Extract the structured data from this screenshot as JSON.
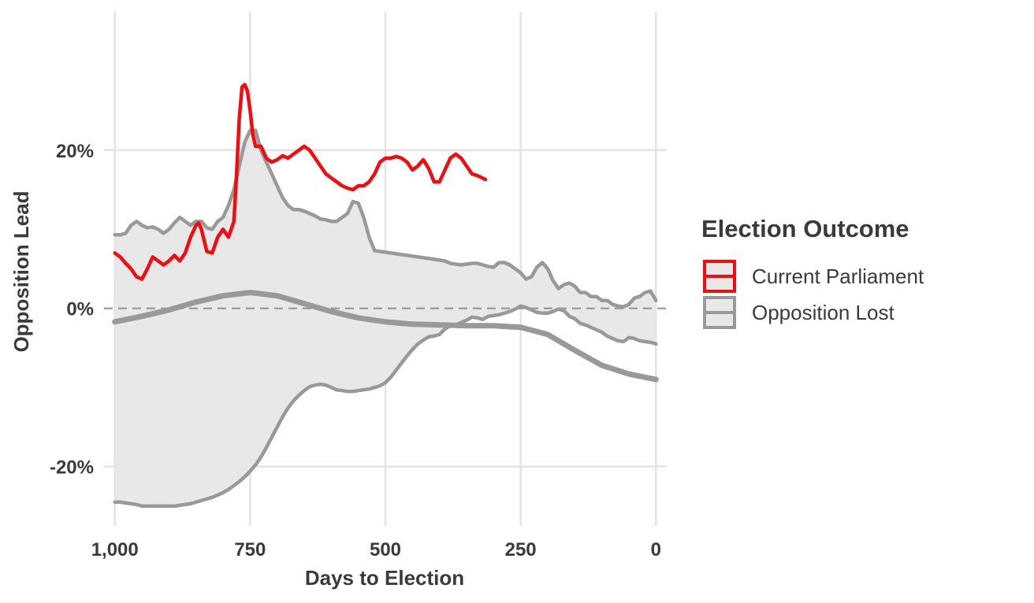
{
  "chart_data": {
    "type": "line",
    "title": "",
    "xlabel": "Days to Election",
    "ylabel": "Opposition Lead",
    "xlim": [
      1020,
      -20
    ],
    "ylim": [
      -0.275,
      0.375
    ],
    "x_reversed": true,
    "x_ticks": [
      1000,
      750,
      500,
      250,
      0
    ],
    "x_tick_labels": [
      "1,000",
      "750",
      "500",
      "250",
      "0"
    ],
    "y_ticks": [
      0.2,
      0.0,
      -0.2
    ],
    "y_tick_labels": [
      "20%",
      "0%",
      "-20%"
    ],
    "grid": true,
    "reference_line": {
      "y": 0,
      "style": "dashed"
    },
    "legend": {
      "title": "Election Outcome",
      "position": "right",
      "entries": [
        "Current Parliament",
        "Opposition Lost"
      ]
    },
    "colors": {
      "current": "#f20c10",
      "lost_line": "#999999",
      "lost_band": "#e8e8e8",
      "grid": "#e3e3e3",
      "zero_line": "#9a9a9a"
    },
    "series": [
      {
        "name": "Current Parliament",
        "kind": "line",
        "x": [
          1000,
          990,
          980,
          970,
          960,
          950,
          940,
          930,
          920,
          910,
          900,
          890,
          880,
          870,
          860,
          850,
          845,
          840,
          830,
          820,
          810,
          800,
          790,
          780,
          775,
          770,
          765,
          760,
          755,
          750,
          745,
          740,
          730,
          720,
          710,
          700,
          690,
          680,
          670,
          660,
          650,
          640,
          630,
          620,
          610,
          600,
          590,
          580,
          570,
          560,
          550,
          540,
          530,
          520,
          510,
          500,
          490,
          480,
          470,
          460,
          450,
          440,
          430,
          420,
          410,
          400,
          390,
          380,
          370,
          360,
          350,
          340,
          330,
          315
        ],
        "y": [
          0.07,
          0.065,
          0.057,
          0.05,
          0.04,
          0.037,
          0.05,
          0.065,
          0.06,
          0.055,
          0.06,
          0.067,
          0.06,
          0.07,
          0.09,
          0.105,
          0.108,
          0.1,
          0.072,
          0.07,
          0.09,
          0.1,
          0.09,
          0.11,
          0.17,
          0.24,
          0.28,
          0.283,
          0.275,
          0.25,
          0.22,
          0.205,
          0.205,
          0.19,
          0.185,
          0.188,
          0.193,
          0.19,
          0.195,
          0.2,
          0.205,
          0.2,
          0.19,
          0.18,
          0.17,
          0.165,
          0.16,
          0.155,
          0.152,
          0.15,
          0.155,
          0.155,
          0.16,
          0.17,
          0.185,
          0.19,
          0.19,
          0.192,
          0.19,
          0.185,
          0.175,
          0.18,
          0.188,
          0.177,
          0.16,
          0.16,
          0.175,
          0.19,
          0.195,
          0.19,
          0.18,
          0.17,
          0.168,
          0.163
        ]
      },
      {
        "name": "Opposition Lost",
        "kind": "band",
        "x": [
          1000,
          990,
          980,
          970,
          960,
          950,
          940,
          930,
          920,
          910,
          900,
          890,
          880,
          870,
          860,
          850,
          840,
          830,
          820,
          810,
          800,
          790,
          780,
          770,
          760,
          750,
          740,
          730,
          720,
          710,
          700,
          690,
          680,
          670,
          660,
          650,
          640,
          630,
          620,
          610,
          600,
          590,
          580,
          570,
          560,
          550,
          540,
          530,
          520,
          510,
          500,
          490,
          480,
          470,
          460,
          450,
          440,
          430,
          420,
          410,
          400,
          390,
          380,
          370,
          360,
          350,
          340,
          330,
          320,
          310,
          300,
          290,
          280,
          270,
          260,
          250,
          240,
          230,
          220,
          210,
          200,
          190,
          180,
          170,
          160,
          150,
          140,
          130,
          120,
          110,
          100,
          90,
          80,
          70,
          60,
          50,
          40,
          30,
          20,
          10,
          0
        ],
        "upper": [
          0.093,
          0.093,
          0.095,
          0.105,
          0.11,
          0.105,
          0.102,
          0.103,
          0.1,
          0.095,
          0.1,
          0.108,
          0.115,
          0.11,
          0.105,
          0.11,
          0.11,
          0.102,
          0.1,
          0.11,
          0.115,
          0.13,
          0.15,
          0.18,
          0.21,
          0.225,
          0.225,
          0.2,
          0.185,
          0.17,
          0.155,
          0.14,
          0.13,
          0.125,
          0.125,
          0.123,
          0.12,
          0.117,
          0.113,
          0.112,
          0.11,
          0.11,
          0.115,
          0.12,
          0.135,
          0.133,
          0.115,
          0.09,
          0.073,
          0.072,
          0.071,
          0.07,
          0.069,
          0.068,
          0.067,
          0.066,
          0.065,
          0.064,
          0.063,
          0.062,
          0.061,
          0.06,
          0.057,
          0.056,
          0.055,
          0.056,
          0.057,
          0.057,
          0.055,
          0.053,
          0.052,
          0.058,
          0.058,
          0.055,
          0.05,
          0.045,
          0.037,
          0.04,
          0.052,
          0.058,
          0.05,
          0.035,
          0.025,
          0.03,
          0.032,
          0.028,
          0.02,
          0.02,
          0.015,
          0.015,
          0.01,
          0.01,
          0.005,
          0.003,
          0.002,
          0.005,
          0.013,
          0.015,
          0.02,
          0.022,
          0.01
        ],
        "lower": [
          -0.245,
          -0.245,
          -0.246,
          -0.247,
          -0.248,
          -0.25,
          -0.25,
          -0.25,
          -0.25,
          -0.25,
          -0.25,
          -0.25,
          -0.249,
          -0.248,
          -0.247,
          -0.245,
          -0.243,
          -0.241,
          -0.239,
          -0.236,
          -0.233,
          -0.229,
          -0.224,
          -0.219,
          -0.213,
          -0.206,
          -0.198,
          -0.188,
          -0.176,
          -0.163,
          -0.15,
          -0.137,
          -0.126,
          -0.117,
          -0.11,
          -0.104,
          -0.099,
          -0.097,
          -0.096,
          -0.097,
          -0.1,
          -0.103,
          -0.104,
          -0.105,
          -0.105,
          -0.104,
          -0.103,
          -0.102,
          -0.1,
          -0.098,
          -0.094,
          -0.087,
          -0.078,
          -0.069,
          -0.06,
          -0.052,
          -0.045,
          -0.04,
          -0.036,
          -0.035,
          -0.033,
          -0.026,
          -0.022,
          -0.021,
          -0.018,
          -0.015,
          -0.011,
          -0.012,
          -0.014,
          -0.01,
          -0.009,
          -0.008,
          -0.006,
          -0.004,
          -0.001,
          0.003,
          0.001,
          -0.002,
          -0.005,
          -0.006,
          -0.006,
          -0.004,
          -0.001,
          -0.003,
          -0.01,
          -0.013,
          -0.019,
          -0.021,
          -0.024,
          -0.027,
          -0.03,
          -0.035,
          -0.038,
          -0.041,
          -0.042,
          -0.037,
          -0.038,
          -0.041,
          -0.042,
          -0.043,
          -0.045
        ]
      },
      {
        "name": "Opposition Lost",
        "kind": "line",
        "x": [
          1000,
          950,
          900,
          850,
          800,
          750,
          700,
          650,
          600,
          550,
          500,
          450,
          400,
          350,
          300,
          250,
          200,
          150,
          100,
          50,
          0
        ],
        "y": [
          -0.017,
          -0.01,
          -0.002,
          0.008,
          0.016,
          0.02,
          0.016,
          0.006,
          -0.004,
          -0.012,
          -0.017,
          -0.02,
          -0.021,
          -0.022,
          -0.022,
          -0.024,
          -0.033,
          -0.053,
          -0.072,
          -0.083,
          -0.09
        ]
      }
    ]
  }
}
